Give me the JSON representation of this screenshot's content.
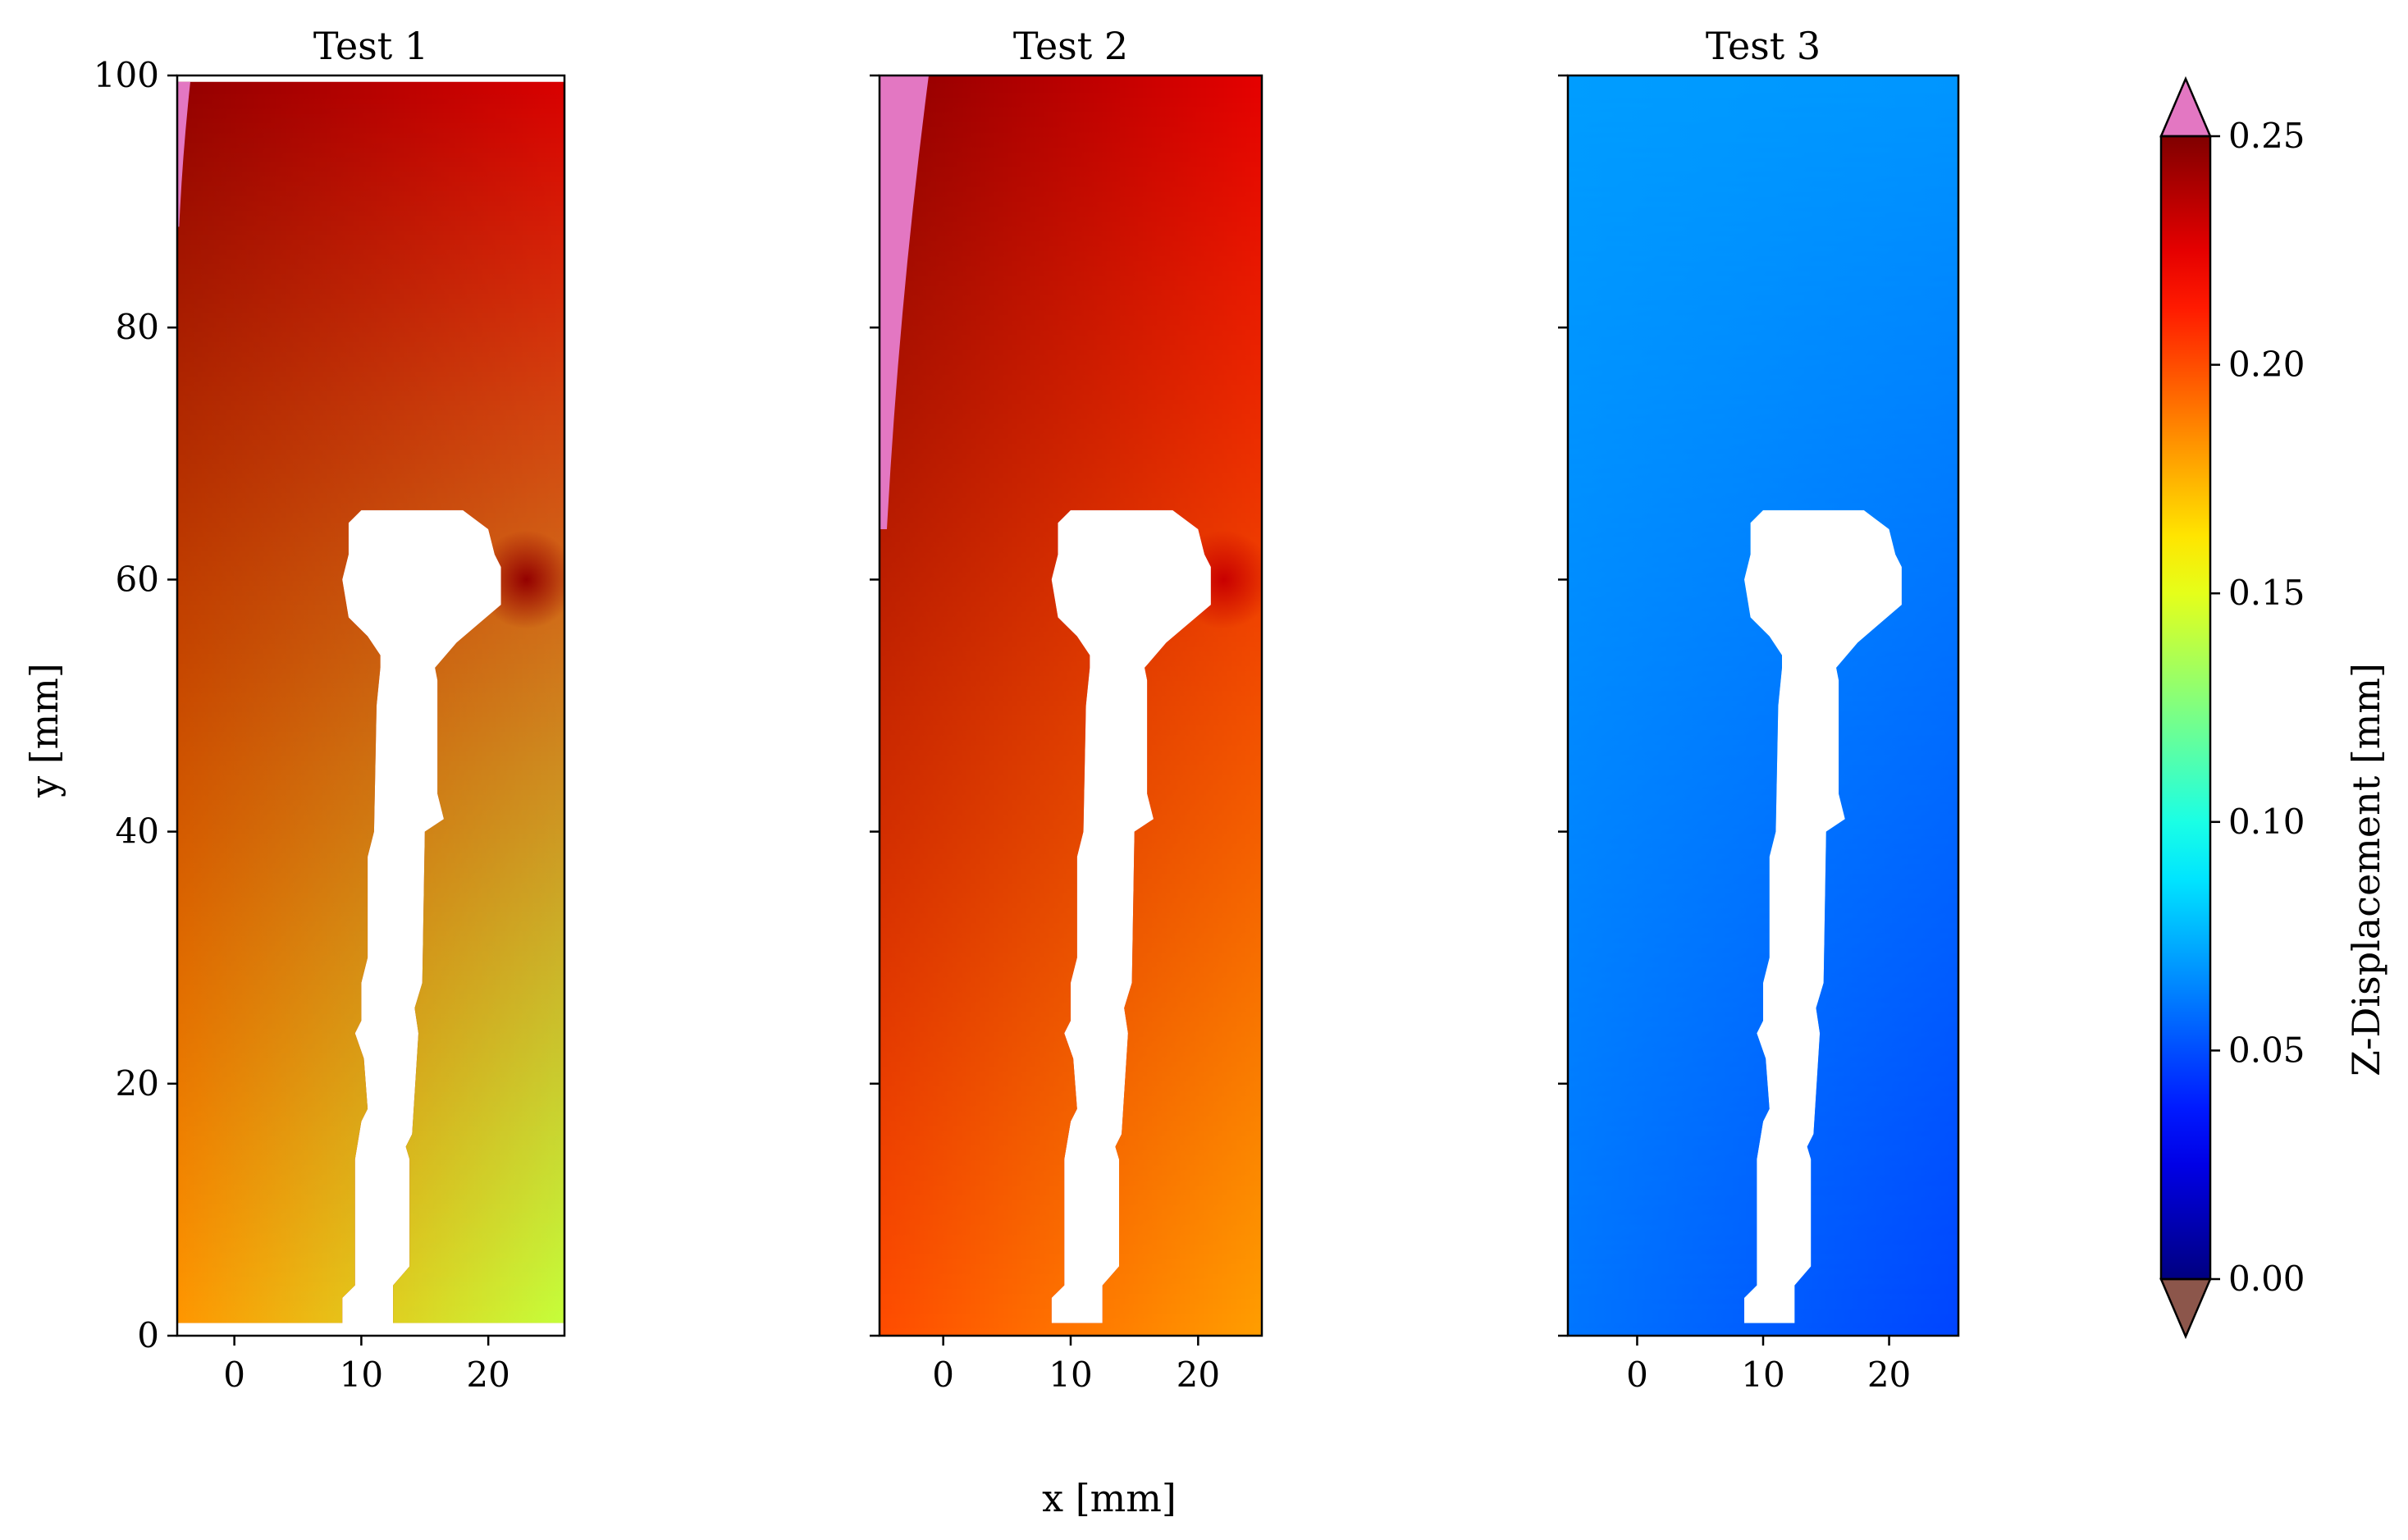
{
  "chart_data": {
    "type": "heatmap",
    "xlabel": "x [mm]",
    "ylabel": "y [mm]",
    "colorbar": {
      "label": "Z-Displacement [mm]",
      "range": [
        0.0,
        0.25
      ],
      "ticks": [
        "0.00",
        "0.05",
        "0.10",
        "0.15",
        "0.20",
        "0.25"
      ],
      "colormap": "jet",
      "over_color": "#e377c2",
      "under_color": "#8c564b"
    },
    "shared_y": true,
    "panels": [
      {
        "title": "Test 1",
        "xlim": [
          -4.5,
          26
        ],
        "ylim": [
          0,
          100
        ],
        "xticks": [
          "0",
          "10",
          "20"
        ],
        "yticks": [
          "0",
          "20",
          "40",
          "60",
          "80",
          "100"
        ],
        "range": {
          "x": [
            -4.5,
            26
          ],
          "y": [
            1,
            99.5
          ]
        },
        "value_corners": {
          "top_left": 0.245,
          "top_right": 0.228,
          "bottom_left": 0.182,
          "bottom_right": 0.142
        },
        "notch_hotspot": {
          "x": 23,
          "y": 60,
          "value": 0.245
        },
        "overflow_region": {
          "side": "left",
          "y_range": [
            88,
            99.5
          ],
          "value": "over"
        }
      },
      {
        "title": "Test 2",
        "xlim": [
          -5,
          25
        ],
        "ylim": [
          0,
          100
        ],
        "xticks": [
          "0",
          "10",
          "20"
        ],
        "yticks": [
          "0",
          "20",
          "40",
          "60",
          "80",
          "100"
        ],
        "range": {
          "x": [
            -5,
            25
          ],
          "y": [
            0,
            100
          ]
        },
        "value_corners": {
          "top_left": 0.246,
          "top_right": 0.225,
          "bottom_left": 0.2,
          "bottom_right": 0.18
        },
        "notch_hotspot": {
          "x": 22,
          "y": 60,
          "value": 0.232
        },
        "overflow_region": {
          "side": "left",
          "y_range": [
            64,
            100
          ],
          "value": "over"
        }
      },
      {
        "title": "Test 3",
        "xlim": [
          -5.5,
          25.5
        ],
        "ylim": [
          0,
          100
        ],
        "xticks": [
          "0",
          "10",
          "20"
        ],
        "yticks": [
          "0",
          "20",
          "40",
          "60",
          "80",
          "100"
        ],
        "range": {
          "x": [
            -5.5,
            25.5
          ],
          "y": [
            0,
            100
          ]
        },
        "value_corners": {
          "top_left": 0.07,
          "top_right": 0.068,
          "bottom_left": 0.06,
          "bottom_right": 0.048
        },
        "notch_hotspot": null,
        "overflow_region": null
      }
    ]
  }
}
